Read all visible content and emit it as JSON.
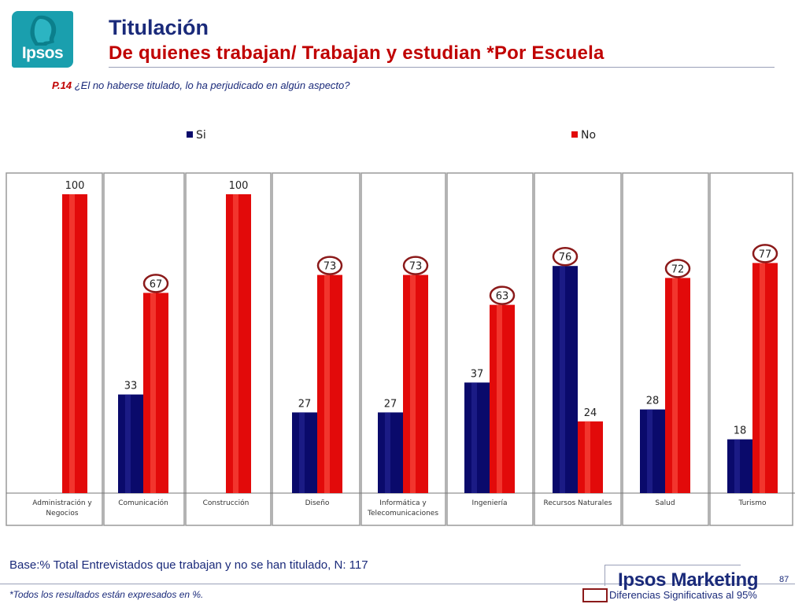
{
  "header": {
    "logo_text": "Ipsos",
    "title": "Titulación",
    "subtitle": "De quienes trabajan/ Trabajan y estudian *Por Escuela",
    "question_code": "P.14",
    "question_text": "¿El no haberse titulado, lo ha perjudicado en algún aspecto?"
  },
  "chart_data": {
    "type": "bar",
    "categories": [
      [
        "Administración y",
        "Negocios"
      ],
      [
        "Comunicación"
      ],
      [
        "Construcción"
      ],
      [
        "Diseño"
      ],
      [
        "Informática y",
        "Telecomunicaciones"
      ],
      [
        "Ingeniería"
      ],
      [
        "Recursos Naturales"
      ],
      [
        "Salud"
      ],
      [
        "Turismo"
      ]
    ],
    "series": [
      {
        "name": "Si",
        "color": "#0a0a6b",
        "values": [
          null,
          33,
          null,
          27,
          27,
          37,
          76,
          28,
          18
        ]
      },
      {
        "name": "No",
        "color": "#e20a0a",
        "values": [
          100,
          67,
          100,
          73,
          73,
          63,
          24,
          72,
          77
        ]
      }
    ],
    "highlighted": [
      {
        "series": 1,
        "category": 1
      },
      {
        "series": 1,
        "category": 3
      },
      {
        "series": 1,
        "category": 4
      },
      {
        "series": 1,
        "category": 5
      },
      {
        "series": 0,
        "category": 6
      },
      {
        "series": 1,
        "category": 7
      },
      {
        "series": 1,
        "category": 8
      }
    ],
    "ylim": [
      0,
      100
    ],
    "legend_position": "top",
    "grid": false
  },
  "footer": {
    "base": "Base:% Total Entrevistados que  trabajan y no se han titulado, N: 117",
    "note": "*Todos los resultados están expresados en %.",
    "brand": "Ipsos Marketing",
    "page_number": "87",
    "significance_label": "Diferencias Significativas al 95%"
  }
}
